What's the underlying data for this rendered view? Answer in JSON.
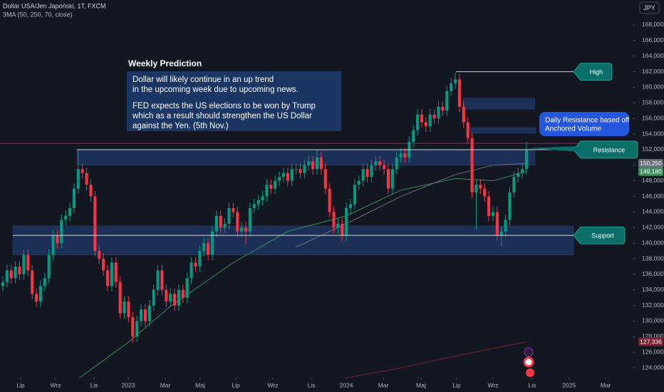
{
  "chart_data": {
    "type": "candlestick",
    "title": "Dollar USA/Jen Japoński, 1T, FXCM",
    "subtitle": "3MA (50, 250, 70, close)",
    "currency": "JPY",
    "up_color": "#089981",
    "down_color": "#f23645",
    "open": [
      134.5,
      135.0,
      136.5,
      135.5,
      137.0,
      136.0,
      138.5,
      136.5,
      133.5,
      132.5,
      134.5,
      135.5,
      138.5,
      141.0,
      140.0,
      143.0,
      143.5,
      144.5,
      147.0,
      149.5,
      149.0,
      147.5,
      146.0,
      139.0,
      138.0,
      136.5,
      134.5,
      137.5,
      135.0,
      131.0,
      132.5,
      130.5,
      128.0,
      130.0,
      131.5,
      130.0,
      132.0,
      134.0,
      136.5,
      134.0,
      132.5,
      133.5,
      132.0,
      134.0,
      133.0,
      135.5,
      137.5,
      137.0,
      139.0,
      140.0,
      138.5,
      141.5,
      143.5,
      142.0,
      142.5,
      144.5,
      144.0,
      141.5,
      142.0,
      141.5,
      144.5,
      145.0,
      145.5,
      146.0,
      147.5,
      147.0,
      148.0,
      148.5,
      149.0,
      148.0,
      149.5,
      149.5,
      149.0,
      150.0,
      150.5,
      149.5,
      151.0,
      149.5,
      147.0,
      144.0,
      142.0,
      142.5,
      141.0,
      144.5,
      145.0,
      147.5,
      148.0,
      149.5,
      148.5,
      150.0,
      150.5,
      150.0,
      149.5,
      147.0,
      149.5,
      151.0,
      151.5,
      151.0,
      153.0,
      154.5,
      156.5,
      155.5,
      155.0,
      156.5,
      156.0,
      157.5,
      157.0,
      159.5,
      160.5,
      161.0,
      157.5,
      155.5,
      153.5,
      146.5,
      147.5,
      147.0,
      146.0,
      143.5,
      144.0,
      141.0,
      141.5,
      143.0,
      146.5,
      148.5,
      149.0,
      149.5
    ],
    "high": [
      135.7,
      137.2,
      137.2,
      137.7,
      137.7,
      139.2,
      139.2,
      137.2,
      134.2,
      135.2,
      136.2,
      139.2,
      141.7,
      141.7,
      143.7,
      144.2,
      145.2,
      147.7,
      151.9,
      150.2,
      149.7,
      148.2,
      146.7,
      139.7,
      138.7,
      137.2,
      138.2,
      138.2,
      135.7,
      133.2,
      133.2,
      131.2,
      130.7,
      132.2,
      132.2,
      132.7,
      134.7,
      137.2,
      137.2,
      134.7,
      134.2,
      134.2,
      134.7,
      134.7,
      136.2,
      138.2,
      138.2,
      139.7,
      140.7,
      140.7,
      142.2,
      144.2,
      144.2,
      143.2,
      145.2,
      145.2,
      144.7,
      142.7,
      142.7,
      145.2,
      145.7,
      146.2,
      146.7,
      148.2,
      148.2,
      148.7,
      149.2,
      149.7,
      149.7,
      150.2,
      150.2,
      150.2,
      150.7,
      151.2,
      151.2,
      151.9,
      151.7,
      150.2,
      147.7,
      144.7,
      143.2,
      143.2,
      145.2,
      145.7,
      148.2,
      148.7,
      150.2,
      150.2,
      150.7,
      151.2,
      151.2,
      150.7,
      150.2,
      150.2,
      151.7,
      152.2,
      152.2,
      153.7,
      155.2,
      157.2,
      157.2,
      156.2,
      157.2,
      157.2,
      158.2,
      158.2,
      160.2,
      161.2,
      161.9,
      161.7,
      158.2,
      156.2,
      154.2,
      148.2,
      148.2,
      147.7,
      146.7,
      144.7,
      144.7,
      142.2,
      143.7,
      147.2,
      149.2,
      149.7,
      150.2,
      153.0
    ],
    "low": [
      133.8,
      134.3,
      134.8,
      134.8,
      135.3,
      135.3,
      135.8,
      132.8,
      131.8,
      131.8,
      133.8,
      134.8,
      137.8,
      139.3,
      139.3,
      142.3,
      142.8,
      143.8,
      146.3,
      148.3,
      146.8,
      145.3,
      138.3,
      137.3,
      135.8,
      133.8,
      133.8,
      134.3,
      130.3,
      130.3,
      129.8,
      127.2,
      127.3,
      129.3,
      129.3,
      129.3,
      131.3,
      133.3,
      133.3,
      131.8,
      131.8,
      131.3,
      131.3,
      132.3,
      132.3,
      134.8,
      136.3,
      136.3,
      138.3,
      137.8,
      137.8,
      140.8,
      141.3,
      141.3,
      141.8,
      143.3,
      140.8,
      140.8,
      139.8,
      140.8,
      143.8,
      144.3,
      144.8,
      145.3,
      146.3,
      146.3,
      147.3,
      147.8,
      147.3,
      147.3,
      148.8,
      148.3,
      148.3,
      149.3,
      148.8,
      148.8,
      148.8,
      146.3,
      143.3,
      141.3,
      141.3,
      140.3,
      140.3,
      143.8,
      144.3,
      146.8,
      147.3,
      147.8,
      147.8,
      149.3,
      149.3,
      148.8,
      146.3,
      146.3,
      148.8,
      150.3,
      150.3,
      150.3,
      152.3,
      153.8,
      154.8,
      154.3,
      154.3,
      155.3,
      155.3,
      156.3,
      156.3,
      158.8,
      159.8,
      156.8,
      154.8,
      152.8,
      145.8,
      141.7,
      146.3,
      145.3,
      142.8,
      142.8,
      140.3,
      139.6,
      140.8,
      142.3,
      145.8,
      147.8,
      148.3,
      148.8
    ],
    "close": [
      135.0,
      136.5,
      135.5,
      137.0,
      136.0,
      138.5,
      136.5,
      133.5,
      132.5,
      134.5,
      135.5,
      138.5,
      141.0,
      140.0,
      143.0,
      143.5,
      144.5,
      147.0,
      149.5,
      149.0,
      147.5,
      146.0,
      139.0,
      138.0,
      136.5,
      134.5,
      137.5,
      135.0,
      131.0,
      132.5,
      130.5,
      128.0,
      130.0,
      131.5,
      130.0,
      132.0,
      134.0,
      136.5,
      134.0,
      132.5,
      133.5,
      132.0,
      134.0,
      133.0,
      135.5,
      137.5,
      137.0,
      139.0,
      140.0,
      138.5,
      141.5,
      143.5,
      142.0,
      142.5,
      144.5,
      144.0,
      141.5,
      142.0,
      141.5,
      144.5,
      145.0,
      145.5,
      146.0,
      147.5,
      147.0,
      148.0,
      148.5,
      149.0,
      148.0,
      149.5,
      149.5,
      149.0,
      150.0,
      150.5,
      149.5,
      151.0,
      149.5,
      147.0,
      144.0,
      142.0,
      142.5,
      141.0,
      144.5,
      145.0,
      147.5,
      148.0,
      149.5,
      148.5,
      150.0,
      150.5,
      150.0,
      149.5,
      147.0,
      149.5,
      151.0,
      151.5,
      151.0,
      153.0,
      154.5,
      156.5,
      155.5,
      155.0,
      156.5,
      156.0,
      157.5,
      157.0,
      159.5,
      160.5,
      161.0,
      157.5,
      155.5,
      153.5,
      146.5,
      147.5,
      147.0,
      146.0,
      143.5,
      144.0,
      141.0,
      141.5,
      143.0,
      146.5,
      148.5,
      149.0,
      149.5,
      152.0
    ],
    "moving_averages": [
      {
        "color": "#3a8f5c",
        "x": [
          18,
          30,
          40,
          55,
          68,
          82,
          95,
          108,
          117,
          125
        ],
        "values": [
          122.6,
          127.3,
          131.9,
          137.5,
          141.5,
          143.5,
          146.8,
          148.3,
          148.0,
          149.18
        ]
      },
      {
        "color": "#6b6f7a",
        "x": [
          70,
          82,
          95,
          108,
          117,
          125
        ],
        "values": [
          139.5,
          142.5,
          146.0,
          148.8,
          150.0,
          150.25
        ]
      },
      {
        "color": "#7a2030",
        "x": [
          80,
          95,
          108,
          117,
          125
        ],
        "values": [
          122.5,
          124.0,
          125.5,
          126.5,
          127.336
        ]
      }
    ],
    "price_labels": [
      {
        "value": 150.25,
        "label": "150,250",
        "color": "#6b6f7a"
      },
      {
        "value": 149.18,
        "label": "149,180",
        "color": "#3a8f5c"
      },
      {
        "value": 127.336,
        "label": "127,336",
        "color": "#7a2030"
      }
    ],
    "zones": [
      {
        "from": 150.0,
        "to": 152.0,
        "x": [
          17.7,
          127.0
        ]
      },
      {
        "from": 138.5,
        "to": 142.2,
        "x": [
          2.4,
          136.2
        ]
      },
      {
        "from": 157.2,
        "to": 158.6,
        "x": [
          109.9,
          127.0
        ]
      },
      {
        "from": 154.1,
        "to": 154.8,
        "x": [
          111.6,
          127.2
        ]
      }
    ],
    "hline": {
      "value": 152.8,
      "color": "#c2185b"
    },
    "levels": [
      {
        "label": "High",
        "value": 162.0,
        "x": [
          108.2,
          136.2
        ]
      },
      {
        "label": "Resistance",
        "value": 152.0,
        "x": [
          17.7,
          136.2
        ]
      },
      {
        "label": "Support",
        "value": 141.0,
        "x": [
          2.4,
          136.2
        ]
      }
    ],
    "note": [
      "Daily Resistance based off",
      "Anchored Volume"
    ],
    "prediction": {
      "heading": "Weekly Prediction",
      "lines": [
        "Dollar will likely continue in an up trend",
        "in the upcoming week due to upcoming news.",
        "FED expects the US elections to be won by Trump",
        "which as a result should strengthen the US Dollar",
        "against the Yen. (5th Nov.)"
      ]
    },
    "xlim": [
      -0.68,
      150.34
    ],
    "xticks": [
      {
        "value": 4.25,
        "label": "Lip"
      },
      {
        "value": 12.59,
        "label": "Wrz"
      },
      {
        "value": 21.77,
        "label": "Lis"
      },
      {
        "value": 29.93,
        "label": "2023"
      },
      {
        "value": 38.78,
        "label": "Mar"
      },
      {
        "value": 47.11,
        "label": "Maj"
      },
      {
        "value": 55.61,
        "label": "Lip"
      },
      {
        "value": 64.46,
        "label": "Wrz"
      },
      {
        "value": 73.64,
        "label": "Lis"
      },
      {
        "value": 81.97,
        "label": "2024"
      },
      {
        "value": 90.82,
        "label": "Mar"
      },
      {
        "value": 99.83,
        "label": "Maj"
      },
      {
        "value": 108.33,
        "label": "Lip"
      },
      {
        "value": 117.01,
        "label": "Wrz"
      },
      {
        "value": 126.36,
        "label": "Lis"
      },
      {
        "value": 135.2,
        "label": "2025"
      },
      {
        "value": 143.88,
        "label": "Mar"
      }
    ],
    "ylim": [
      120.9,
      171.2
    ],
    "yticks": [
      {
        "value": 124,
        "label": "124,000"
      },
      {
        "value": 126,
        "label": "126,000"
      },
      {
        "value": 128,
        "label": "128,000"
      },
      {
        "value": 130,
        "label": "130,000"
      },
      {
        "value": 132,
        "label": "132,000"
      },
      {
        "value": 134,
        "label": "134,000"
      },
      {
        "value": 136,
        "label": "136,000"
      },
      {
        "value": 138,
        "label": "138,000"
      },
      {
        "value": 140,
        "label": "140,000"
      },
      {
        "value": 142,
        "label": "142,000"
      },
      {
        "value": 144,
        "label": "144,000"
      },
      {
        "value": 146,
        "label": "146,000"
      },
      {
        "value": 148,
        "label": "148,000"
      },
      {
        "value": 150,
        "label": "150,000"
      },
      {
        "value": 152,
        "label": "152,000"
      },
      {
        "value": 154,
        "label": "154,000"
      },
      {
        "value": 156,
        "label": "156,000"
      },
      {
        "value": 158,
        "label": "158,000"
      },
      {
        "value": 160,
        "label": "160,000"
      },
      {
        "value": 162,
        "label": "162,000"
      },
      {
        "value": 164,
        "label": "164,000"
      },
      {
        "value": 166,
        "label": "166,000"
      },
      {
        "value": 168,
        "label": "168,000"
      }
    ]
  }
}
